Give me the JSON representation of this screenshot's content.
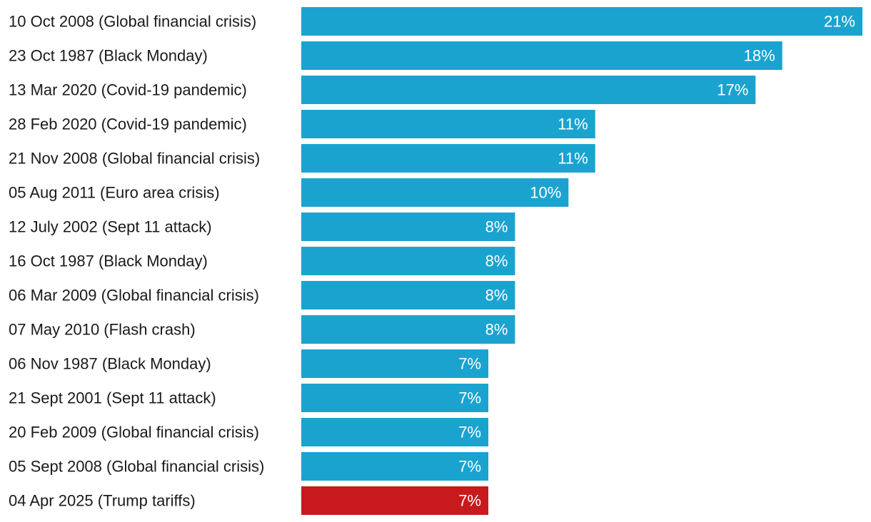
{
  "chart_data": {
    "type": "bar",
    "orientation": "horizontal",
    "title": "",
    "xlabel": "",
    "ylabel": "",
    "xlim": [
      0,
      21
    ],
    "grid": false,
    "value_suffix": "%",
    "categories": [
      "10 Oct 2008 (Global financial crisis)",
      "23 Oct 1987 (Black Monday)",
      "13 Mar 2020 (Covid-19 pandemic)",
      "28 Feb 2020 (Covid-19 pandemic)",
      "21 Nov 2008 (Global financial crisis)",
      "05 Aug 2011 (Euro area crisis)",
      "12 July 2002 (Sept 11 attack)",
      "16 Oct 1987 (Black Monday)",
      "06 Mar 2009 (Global financial crisis)",
      "07 May 2010 (Flash crash)",
      "06 Nov 1987 (Black Monday)",
      "21 Sept 2001 (Sept 11 attack)",
      "20 Feb 2009 (Global financial crisis)",
      "05 Sept 2008 (Global financial crisis)",
      "04 Apr 2025 (Trump tariffs)"
    ],
    "values": [
      21,
      18,
      17,
      11,
      11,
      10,
      8,
      8,
      8,
      8,
      7,
      7,
      7,
      7,
      7
    ],
    "labels": [
      "21%",
      "18%",
      "17%",
      "11%",
      "11%",
      "10%",
      "8%",
      "8%",
      "8%",
      "8%",
      "7%",
      "7%",
      "7%",
      "7%",
      "7%"
    ],
    "highlight_index": 14,
    "colors": {
      "default": "#1ba3cf",
      "highlight": "#c8191c",
      "label_text": "#1a1a1a",
      "value_text": "#ffffff"
    }
  }
}
